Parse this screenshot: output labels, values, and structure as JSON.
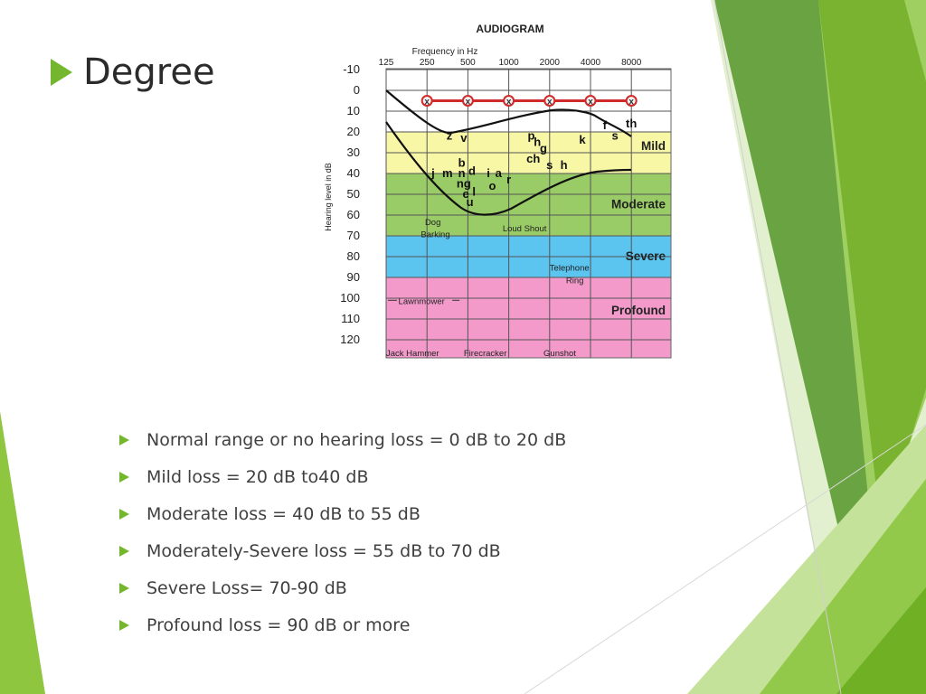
{
  "slide": {
    "title": "Degree",
    "bullets": [
      "Normal range or no hearing loss = 0 dB to 20 dB",
      "Mild loss = 20 dB to40 dB",
      "Moderate loss = 40 dB to 55 dB",
      "Moderately-Severe loss = 55 dB to 70 dB",
      "Severe Loss= 70-90 dB",
      "Profound loss = 90 dB or more"
    ],
    "accent_color": "#74b72e"
  },
  "audiogram": {
    "title": "AUDIOGRAM",
    "x_label": "Frequency in Hz",
    "y_label": "Hearing level in dB",
    "frequencies": [
      "125",
      "250",
      "500",
      "1000",
      "2000",
      "4000",
      "8000"
    ],
    "levels": [
      "-10",
      "0",
      "10",
      "20",
      "30",
      "40",
      "50",
      "60",
      "70",
      "80",
      "90",
      "100",
      "110",
      "120"
    ],
    "zones": [
      {
        "label": "Mild",
        "from_db": 20,
        "to_db": 40,
        "color": "#f7f7a6"
      },
      {
        "label": "Moderate",
        "from_db": 40,
        "to_db": 70,
        "color": "#99cc66"
      },
      {
        "label": "Severe",
        "from_db": 70,
        "to_db": 90,
        "color": "#5bc4ef"
      },
      {
        "label": "Profound",
        "from_db": 90,
        "to_db": 130,
        "color": "#f39acb"
      }
    ],
    "threshold_points_db": [
      5,
      5,
      5,
      5,
      5,
      5
    ],
    "threshold_marker": "x",
    "speech_sounds": [
      {
        "text": "z",
        "freq_index": 1.55,
        "db": 22
      },
      {
        "text": "v",
        "freq_index": 1.9,
        "db": 23
      },
      {
        "text": "p",
        "freq_index": 3.55,
        "db": 22
      },
      {
        "text": "h",
        "freq_index": 3.7,
        "db": 25
      },
      {
        "text": "g",
        "freq_index": 3.85,
        "db": 28
      },
      {
        "text": "ch",
        "freq_index": 3.6,
        "db": 33
      },
      {
        "text": "k",
        "freq_index": 4.8,
        "db": 24
      },
      {
        "text": "f",
        "freq_index": 5.35,
        "db": 17
      },
      {
        "text": "s",
        "freq_index": 5.6,
        "db": 22
      },
      {
        "text": "th",
        "freq_index": 6.0,
        "db": 16
      },
      {
        "text": "j",
        "freq_index": 1.15,
        "db": 40
      },
      {
        "text": "m",
        "freq_index": 1.5,
        "db": 40
      },
      {
        "text": "b",
        "freq_index": 1.85,
        "db": 35
      },
      {
        "text": "n",
        "freq_index": 1.85,
        "db": 40
      },
      {
        "text": "d",
        "freq_index": 2.1,
        "db": 39
      },
      {
        "text": "ng",
        "freq_index": 1.9,
        "db": 45
      },
      {
        "text": "e",
        "freq_index": 1.95,
        "db": 50
      },
      {
        "text": "l",
        "freq_index": 2.15,
        "db": 49
      },
      {
        "text": "u",
        "freq_index": 2.05,
        "db": 54
      },
      {
        "text": "i",
        "freq_index": 2.5,
        "db": 40
      },
      {
        "text": "a",
        "freq_index": 2.75,
        "db": 40
      },
      {
        "text": "o",
        "freq_index": 2.6,
        "db": 46
      },
      {
        "text": "r",
        "freq_index": 3.0,
        "db": 43
      },
      {
        "text": "s",
        "freq_index": 4.0,
        "db": 36
      },
      {
        "text": "h",
        "freq_index": 4.35,
        "db": 36
      }
    ],
    "sound_labels": [
      {
        "text": "Dog",
        "freq_index": 0.95,
        "db": 63
      },
      {
        "text": "Barking",
        "freq_index": 0.85,
        "db": 69
      },
      {
        "text": "Loud Shout",
        "freq_index": 2.85,
        "db": 66
      },
      {
        "text": "Telephone",
        "freq_index": 4.0,
        "db": 85
      },
      {
        "text": "Ring",
        "freq_index": 4.4,
        "db": 91
      },
      {
        "text": "Lawnmower",
        "freq_index": 0.3,
        "db": 101
      },
      {
        "text": "Jack Hammer",
        "freq_index": 0.0,
        "db": 126
      },
      {
        "text": "Firecracker",
        "freq_index": 1.9,
        "db": 126
      },
      {
        "text": "Gunshot",
        "freq_index": 3.85,
        "db": 126
      }
    ]
  }
}
